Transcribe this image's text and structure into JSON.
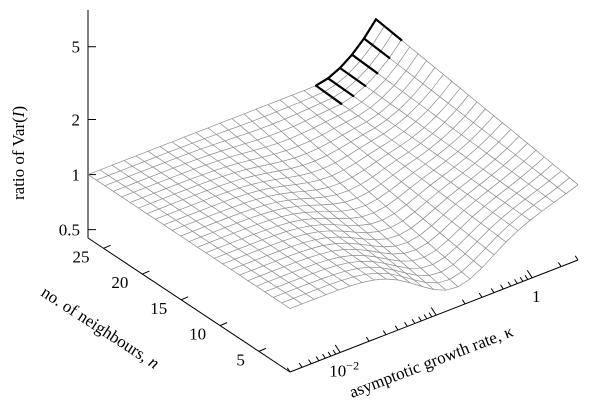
{
  "chart_data": {
    "type": "surface3d",
    "zlabel_prefix": "ratio of Var(",
    "zlabel_var": "I",
    "zlabel_suffix": ")",
    "ylabel_text": "no. of neighbours, ",
    "ylabel_var": "n",
    "xlabel_text": "asymptotic growth rate, ",
    "xlabel_var": "κ",
    "z_scale": "log",
    "zlim": [
      0.45,
      7
    ],
    "z_ticks": [
      {
        "value": 0.5,
        "label": "0.5"
      },
      {
        "value": 1,
        "label": "1"
      },
      {
        "value": 2,
        "label": "2"
      },
      {
        "value": 5,
        "label": "5"
      }
    ],
    "y_ticks": [
      {
        "value": 5,
        "label": "5"
      },
      {
        "value": 10,
        "label": "10"
      },
      {
        "value": 15,
        "label": "15"
      },
      {
        "value": 20,
        "label": "20"
      },
      {
        "value": 25,
        "label": "25"
      }
    ],
    "x_scale": "log",
    "x_ticks": [
      {
        "value": 0.01,
        "base": "10",
        "exp": "−2"
      },
      {
        "value": 1,
        "label": "1"
      }
    ],
    "n_range": [
      1,
      27
    ],
    "kappa_range": [
      0.003,
      3
    ],
    "grid_count": 24,
    "surface_shape": "flat ≈1 at low κ, dips to ≈0.5 near κ≈0.1–0.3 at low n, rises to ≈5 at high κ and high n"
  }
}
